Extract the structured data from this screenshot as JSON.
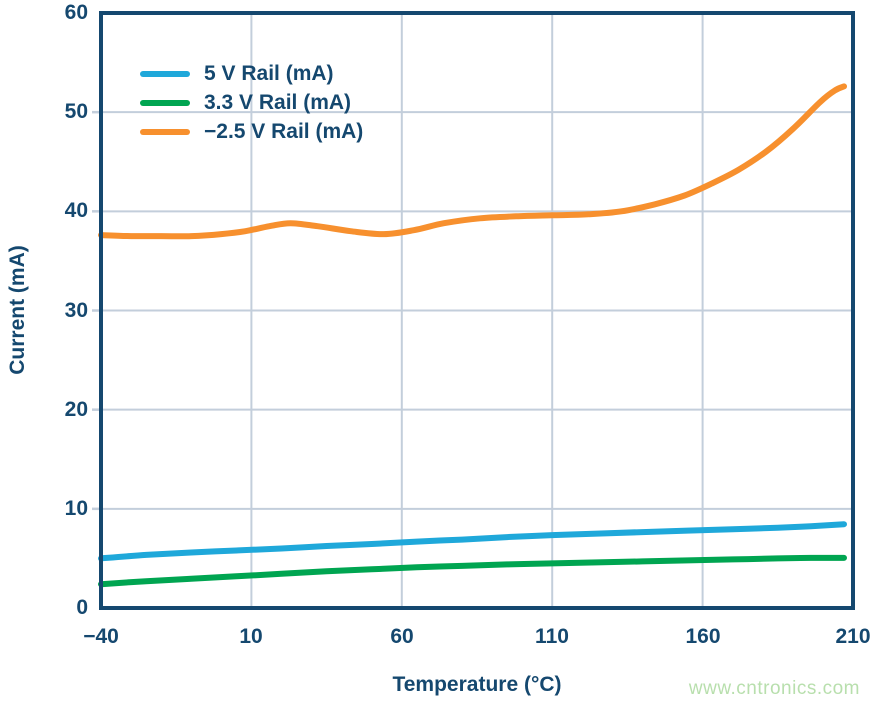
{
  "chart_data": {
    "type": "line",
    "title": "",
    "xlabel": "Temperature (°C)",
    "ylabel": "Current (mA)",
    "xlim": [
      -40,
      210
    ],
    "ylim": [
      0,
      60
    ],
    "x_ticks": [
      -40,
      10,
      60,
      110,
      160,
      210
    ],
    "x_tick_labels": [
      "−40",
      "10",
      "60",
      "110",
      "160",
      "210"
    ],
    "y_ticks": [
      0,
      10,
      20,
      30,
      40,
      50,
      60
    ],
    "y_tick_labels": [
      "0",
      "10",
      "20",
      "30",
      "40",
      "50",
      "60"
    ],
    "grid": true,
    "legend_position": "top-left-inside",
    "series": [
      {
        "id": "5v-rail",
        "name": "5 V Rail (mA)",
        "color": "#1fa8da",
        "x": [
          -40,
          -25,
          -10,
          5,
          20,
          35,
          50,
          65,
          80,
          95,
          110,
          125,
          140,
          155,
          170,
          185,
          196,
          207
        ],
        "y": [
          5.0,
          5.35,
          5.6,
          5.8,
          6.0,
          6.25,
          6.45,
          6.7,
          6.9,
          7.15,
          7.35,
          7.5,
          7.65,
          7.8,
          7.95,
          8.1,
          8.25,
          8.45
        ]
      },
      {
        "id": "3v3-rail",
        "name": "3.3 V Rail (mA)",
        "color": "#00a551",
        "x": [
          -40,
          -25,
          -10,
          5,
          20,
          35,
          50,
          65,
          80,
          95,
          110,
          125,
          140,
          155,
          170,
          185,
          196,
          207
        ],
        "y": [
          2.4,
          2.7,
          2.95,
          3.2,
          3.45,
          3.7,
          3.9,
          4.1,
          4.25,
          4.4,
          4.5,
          4.6,
          4.7,
          4.8,
          4.9,
          5.0,
          5.05,
          5.05
        ]
      },
      {
        "id": "neg-2v5-rail",
        "name": "−2.5 V Rail (mA)",
        "color": "#f7902e",
        "x": [
          -40,
          -30,
          -20,
          -10,
          0,
          8,
          16,
          23,
          32,
          43,
          54,
          64,
          74,
          86,
          98,
          110,
          122,
          133,
          144,
          154,
          163,
          172,
          181,
          190,
          199,
          204,
          207
        ],
        "y": [
          37.6,
          37.5,
          37.5,
          37.5,
          37.7,
          38.0,
          38.5,
          38.8,
          38.5,
          38.0,
          37.7,
          38.1,
          38.8,
          39.3,
          39.5,
          39.6,
          39.7,
          40.0,
          40.7,
          41.6,
          42.8,
          44.2,
          46.0,
          48.3,
          51.0,
          52.2,
          52.6
        ]
      }
    ]
  },
  "watermark": {
    "text": "www.cntronics.com",
    "color": "#b8dfad"
  },
  "colors": {
    "text_and_axes": "#15486f",
    "gridline": "#c3cedb",
    "background": "#ffffff"
  }
}
